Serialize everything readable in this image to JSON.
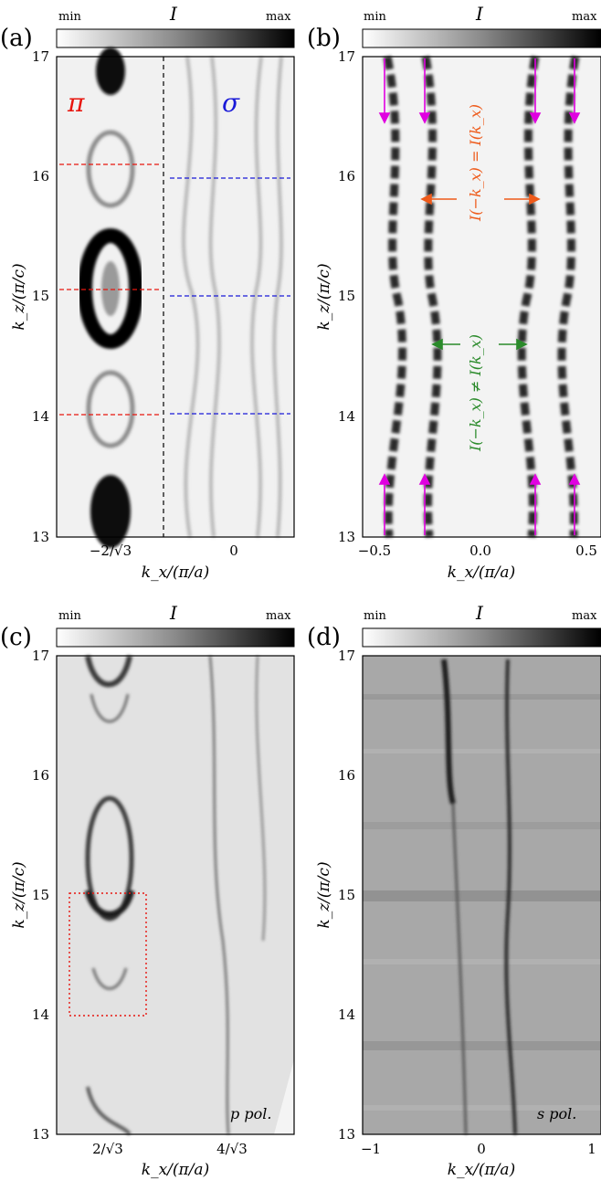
{
  "colorbar": {
    "min": "min",
    "max": "max",
    "symbol": "I"
  },
  "panels": [
    {
      "id": "a",
      "label": "(a)",
      "xlabel": "k_x/(π/a)",
      "ylabel": "k_z/(π/c)",
      "xticks": [
        "−2/√3",
        "0"
      ],
      "yticks": [
        "13",
        "14",
        "15",
        "16",
        "17"
      ],
      "annotations": {
        "left": "π",
        "right": "σ"
      }
    },
    {
      "id": "b",
      "label": "(b)",
      "xlabel": "k_x/(π/a)",
      "ylabel": "k_z/(π/c)",
      "xticks": [
        "−0.5",
        "0.0",
        "0.5"
      ],
      "yticks": [
        "13",
        "14",
        "15",
        "16",
        "17"
      ],
      "annotations": {
        "upper": "I(−k_x) = I(k_x)",
        "lower": "I(−k_x) ≠ I(k_x)"
      }
    },
    {
      "id": "c",
      "label": "(c)",
      "xlabel": "k_x/(π/a)",
      "ylabel": "k_z/(π/c)",
      "xticks": [
        "2/√3",
        "4/√3"
      ],
      "yticks": [
        "13",
        "14",
        "15",
        "16",
        "17"
      ],
      "annotations": {
        "pol": "p pol."
      }
    },
    {
      "id": "d",
      "label": "(d)",
      "xlabel": "k_x/(π/a)",
      "ylabel": "k_z/(π/c)",
      "xticks": [
        "−1",
        "0",
        "1"
      ],
      "yticks": [
        "13",
        "14",
        "15",
        "16",
        "17"
      ],
      "annotations": {
        "pol": "s pol."
      }
    }
  ],
  "colors": {
    "red": "#e8160f",
    "blue": "#1a1ad8",
    "magenta": "#e000e0",
    "orange": "#ee5a1a",
    "green": "#2a8a2a"
  }
}
